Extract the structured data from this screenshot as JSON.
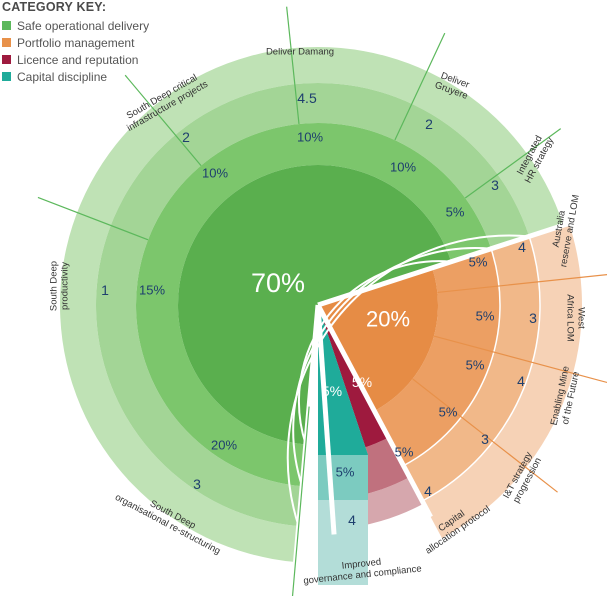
{
  "legend": {
    "title": "CATEGORY KEY:",
    "items": [
      {
        "label": "Safe operational delivery",
        "color": "#5cb85c"
      },
      {
        "label": "Portfolio management",
        "color": "#e8914a"
      },
      {
        "label": "Licence and reputation",
        "color": "#9e1a3e"
      },
      {
        "label": "Capital discipline",
        "color": "#1fab9a"
      }
    ]
  },
  "categories": [
    {
      "id": "safe",
      "center_label": "70%",
      "base": "#6abf5e",
      "light": "#bfe2b5",
      "mid": "#a3d596",
      "dark": "#7cc66c",
      "core": "#5aaf4e"
    },
    {
      "id": "portfolio",
      "center_label": "20%",
      "base": "#e8914a",
      "light": "#f6d2b6",
      "mid": "#f1b889",
      "dark": "#ec9f63",
      "core": "#e68c45"
    },
    {
      "id": "licence",
      "center_label": "5%",
      "base": "#9e1a3e",
      "light": "#d6a7ad",
      "mid": "#c0717e",
      "dark": "#9e1a3e",
      "core": "#9e1a3e"
    },
    {
      "id": "capital",
      "center_label": "5%",
      "base": "#1fab9a",
      "light": "#b3ddd8",
      "mid": "#7ccbc0",
      "dark": "#1fab9a",
      "core": "#1fab9a"
    }
  ],
  "segments": [
    {
      "category": "safe",
      "name": "Integrated HR strategy",
      "weight": "5%",
      "priority": "3"
    },
    {
      "category": "safe",
      "name": "Deliver Gruyere",
      "weight": "10%",
      "priority": "2"
    },
    {
      "category": "safe",
      "name": "Deliver Damang",
      "weight": "10%",
      "priority": "4.5"
    },
    {
      "category": "safe",
      "name": "South Deep critical infrastructure projects",
      "weight": "10%",
      "priority": "2"
    },
    {
      "category": "safe",
      "name": "South Deep productivity",
      "weight": "15%",
      "priority": "1"
    },
    {
      "category": "safe",
      "name": "South Deep organisational re-structuring",
      "weight": "20%",
      "priority": "3"
    },
    {
      "category": "capital",
      "name": "Improved governance and compliance",
      "weight": "5%",
      "priority": "4"
    },
    {
      "category": "licence",
      "name": "Capital allocation protocol",
      "weight": "5%",
      "priority": "4"
    },
    {
      "category": "portfolio",
      "name": "I&T strategy progression",
      "weight": "5%",
      "priority": "3"
    },
    {
      "category": "portfolio",
      "name": "Enabling Mine of the Future",
      "weight": "5%",
      "priority": "4"
    },
    {
      "category": "portfolio",
      "name": "West Africa LOM",
      "weight": "5%",
      "priority": "3"
    },
    {
      "category": "portfolio",
      "name": "Australia reserve and LOM",
      "weight": "5%",
      "priority": "4"
    }
  ]
}
